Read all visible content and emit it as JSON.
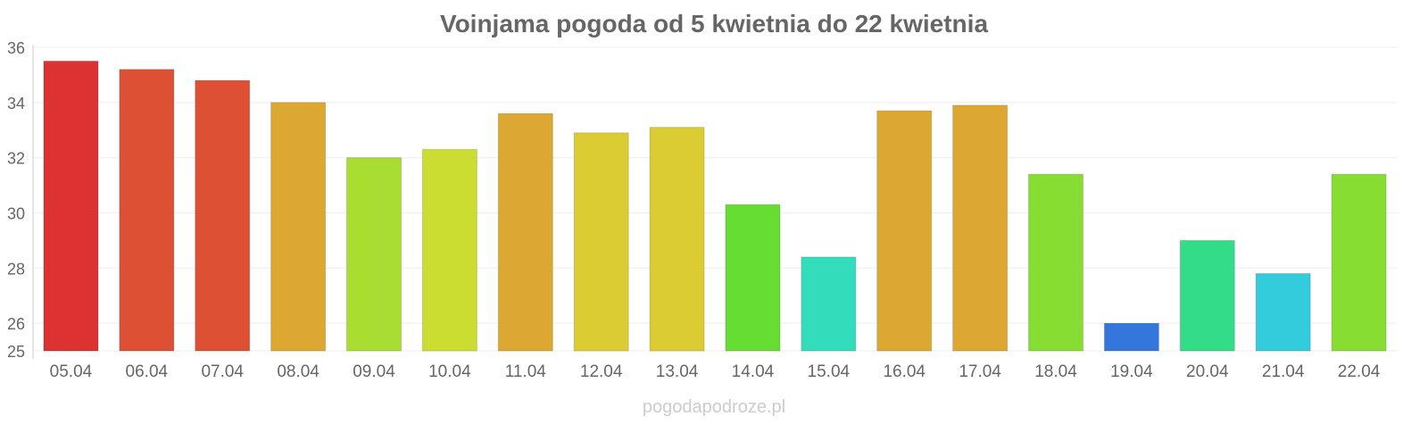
{
  "chart_data": {
    "type": "bar",
    "title": "Voinjama pogoda od 5 kwietnia do 22 kwietnia",
    "xlabel": "",
    "ylabel": "",
    "ylim": [
      25,
      36
    ],
    "yticks": [
      25,
      26,
      28,
      30,
      32,
      34,
      36
    ],
    "grid": true,
    "categories": [
      "05.04",
      "06.04",
      "07.04",
      "08.04",
      "09.04",
      "10.04",
      "11.04",
      "12.04",
      "13.04",
      "14.04",
      "15.04",
      "16.04",
      "17.04",
      "18.04",
      "19.04",
      "20.04",
      "21.04",
      "22.04"
    ],
    "values": [
      35.5,
      35.2,
      34.8,
      34.0,
      32.0,
      32.3,
      33.6,
      32.9,
      33.1,
      30.3,
      28.4,
      33.7,
      33.9,
      31.4,
      26.0,
      29.0,
      27.8,
      31.4
    ],
    "colors": [
      "#dc3232",
      "#dd5033",
      "#dd5033",
      "#dca832",
      "#aadd32",
      "#ccdd32",
      "#dca832",
      "#dccc33",
      "#dccc33",
      "#66dd33",
      "#33ddbb",
      "#dca832",
      "#dca832",
      "#88dd33",
      "#3377dd",
      "#33dd88",
      "#33ccdd",
      "#88dd33"
    ]
  },
  "watermark": "pogodapodroze.pl"
}
